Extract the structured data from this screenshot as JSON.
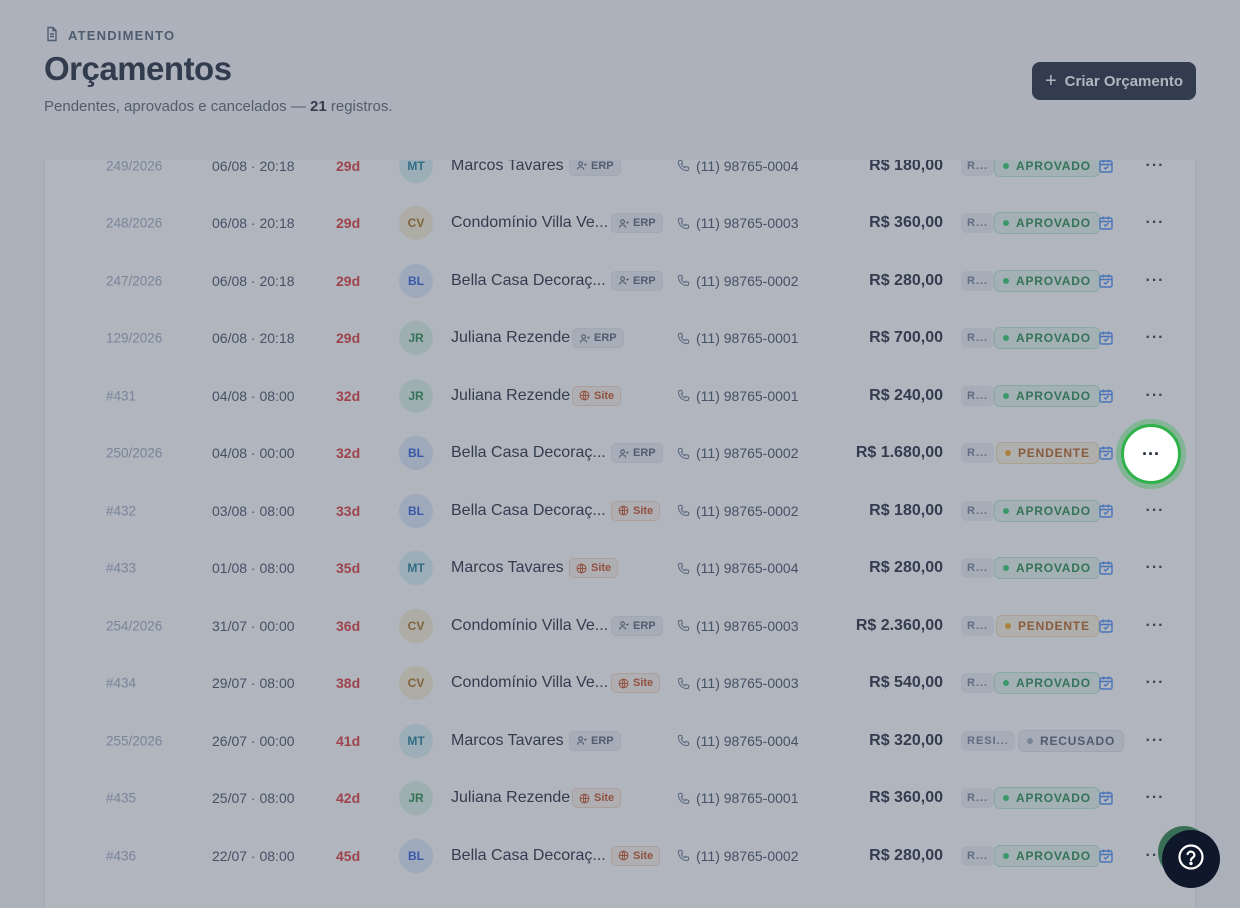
{
  "header": {
    "eyebrow": "ATENDIMENTO",
    "title": "Orçamentos",
    "subtitle_prefix": "Pendentes, aprovados e cancelados —",
    "count": "21",
    "subtitle_suffix": "registros.",
    "create_label": "Criar Orçamento"
  },
  "rows": [
    {
      "num": "249/2026",
      "date": "06/08 · 20:18",
      "age": "29d",
      "initials": "MT",
      "name": "Marcos Tavares",
      "source": "ERP",
      "phone": "(11) 98765-0004",
      "value": "R$ 180,00",
      "tag": "R...",
      "status": "APROVADO"
    },
    {
      "num": "248/2026",
      "date": "06/08 · 20:18",
      "age": "29d",
      "initials": "CV",
      "name": "Condomínio Villa Ve...",
      "source": "ERP",
      "phone": "(11) 98765-0003",
      "value": "R$ 360,00",
      "tag": "R...",
      "status": "APROVADO"
    },
    {
      "num": "247/2026",
      "date": "06/08 · 20:18",
      "age": "29d",
      "initials": "BL",
      "name": "Bella Casa Decoraç...",
      "source": "ERP",
      "phone": "(11) 98765-0002",
      "value": "R$ 280,00",
      "tag": "R...",
      "status": "APROVADO"
    },
    {
      "num": "129/2026",
      "date": "06/08 · 20:18",
      "age": "29d",
      "initials": "JR",
      "name": "Juliana Rezende",
      "source": "ERP",
      "phone": "(11) 98765-0001",
      "value": "R$ 700,00",
      "tag": "R...",
      "status": "APROVADO"
    },
    {
      "num": "#431",
      "date": "04/08 · 08:00",
      "age": "32d",
      "initials": "JR",
      "name": "Juliana Rezende",
      "source": "Site",
      "phone": "(11) 98765-0001",
      "value": "R$ 240,00",
      "tag": "R...",
      "status": "APROVADO"
    },
    {
      "num": "250/2026",
      "date": "04/08 · 00:00",
      "age": "32d",
      "initials": "BL",
      "name": "Bella Casa Decoraç...",
      "source": "ERP",
      "phone": "(11) 98765-0002",
      "value": "R$ 1.680,00",
      "tag": "R...",
      "status": "PENDENTE"
    },
    {
      "num": "#432",
      "date": "03/08 · 08:00",
      "age": "33d",
      "initials": "BL",
      "name": "Bella Casa Decoraç...",
      "source": "Site",
      "phone": "(11) 98765-0002",
      "value": "R$ 180,00",
      "tag": "R...",
      "status": "APROVADO"
    },
    {
      "num": "#433",
      "date": "01/08 · 08:00",
      "age": "35d",
      "initials": "MT",
      "name": "Marcos Tavares",
      "source": "Site",
      "phone": "(11) 98765-0004",
      "value": "R$ 280,00",
      "tag": "R...",
      "status": "APROVADO"
    },
    {
      "num": "254/2026",
      "date": "31/07 · 00:00",
      "age": "36d",
      "initials": "CV",
      "name": "Condomínio Villa Ve...",
      "source": "ERP",
      "phone": "(11) 98765-0003",
      "value": "R$ 2.360,00",
      "tag": "R...",
      "status": "PENDENTE"
    },
    {
      "num": "#434",
      "date": "29/07 · 08:00",
      "age": "38d",
      "initials": "CV",
      "name": "Condomínio Villa Ve...",
      "source": "Site",
      "phone": "(11) 98765-0003",
      "value": "R$ 540,00",
      "tag": "R...",
      "status": "APROVADO"
    },
    {
      "num": "255/2026",
      "date": "26/07 · 00:00",
      "age": "41d",
      "initials": "MT",
      "name": "Marcos Tavares",
      "source": "ERP",
      "phone": "(11) 98765-0004",
      "value": "R$ 320,00",
      "tag": "RESI...",
      "status": "RECUSADO"
    },
    {
      "num": "#435",
      "date": "25/07 · 08:00",
      "age": "42d",
      "initials": "JR",
      "name": "Juliana Rezende",
      "source": "Site",
      "phone": "(11) 98765-0001",
      "value": "R$ 360,00",
      "tag": "R...",
      "status": "APROVADO"
    },
    {
      "num": "#436",
      "date": "22/07 · 08:00",
      "age": "45d",
      "initials": "BL",
      "name": "Bella Casa Decoraç...",
      "source": "Site",
      "phone": "(11) 98765-0002",
      "value": "R$ 280,00",
      "tag": "R...",
      "status": "APROVADO"
    }
  ],
  "more_glyph": "···",
  "highlighted_row_index": 5,
  "colors": {
    "primary": "#0f172a",
    "approved": "#22c55e",
    "pending": "#f59e0b",
    "age": "#dc2626",
    "highlight": "#2fb24a"
  },
  "icons": {
    "eyebrow": "document-icon",
    "create": "plus-icon",
    "erp": "user-icon",
    "site": "globe-icon",
    "phone": "phone-icon",
    "schedule": "calendar-icon",
    "more": "more-horizontal-icon",
    "help": "help-circle-icon"
  }
}
